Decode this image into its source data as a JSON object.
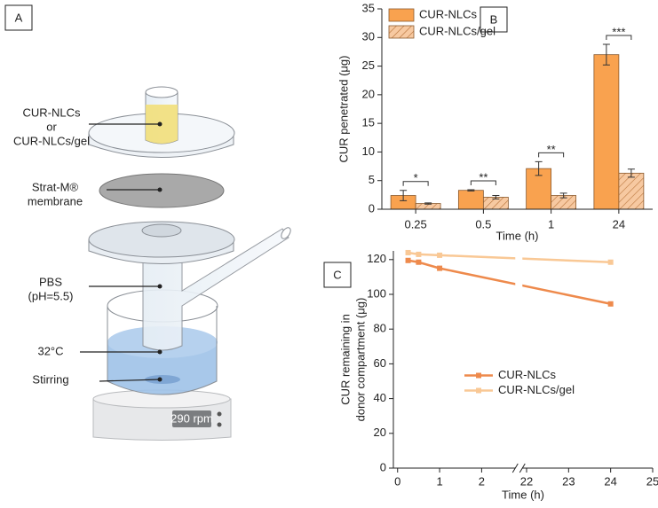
{
  "diagram": {
    "panel": "A",
    "labels": [
      "CUR-NLCs",
      "or",
      "CUR-NLCs/gel",
      "Strat-M®",
      "membrane",
      "PBS",
      "(pH=5.5)",
      "32°C",
      "Stirring"
    ],
    "display": "290 rpm"
  },
  "chart_data": [
    {
      "type": "bar",
      "panel": "B",
      "xlabel": "Time (h)",
      "ylabel": "CUR penetrated (μg)",
      "categories": [
        "0.25",
        "0.5",
        "1",
        "24"
      ],
      "series": [
        {
          "name": "CUR-NLCs",
          "color": "#f9a24f",
          "values": [
            2.4,
            3.3,
            7.1,
            27.0
          ],
          "errors": [
            0.9,
            0.1,
            1.2,
            1.8
          ]
        },
        {
          "name": "CUR-NLCs/gel",
          "color": "#f7c9a1",
          "hatch": true,
          "values": [
            1.0,
            2.1,
            2.4,
            6.3
          ],
          "errors": [
            0.1,
            0.3,
            0.4,
            0.7
          ]
        }
      ],
      "significance": [
        "*",
        "**",
        "**",
        "***"
      ],
      "ylim": [
        0,
        35
      ],
      "yticks": [
        0,
        5,
        10,
        15,
        20,
        25,
        30,
        35
      ],
      "legend": "upper left"
    },
    {
      "type": "line",
      "panel": "C",
      "xlabel": "Time (h)",
      "ylabel": [
        "CUR remaining in",
        "donor compartment (μg)"
      ],
      "x": [
        0.25,
        0.5,
        1,
        24
      ],
      "series": [
        {
          "name": "CUR-NLCs",
          "color": "#ee8a4c",
          "values": [
            119.5,
            118.5,
            115,
            94.5
          ]
        },
        {
          "name": "CUR-NLCs/gel",
          "color": "#f9c895",
          "values": [
            124,
            123,
            122.5,
            118.5
          ]
        }
      ],
      "xlim": [
        -0.1,
        25
      ],
      "xbreak": [
        2.8,
        21.9
      ],
      "xticks": [
        0,
        1,
        2,
        22,
        23,
        24,
        25
      ],
      "ylim": [
        0,
        125
      ],
      "yticks": [
        0,
        20,
        40,
        60,
        80,
        100,
        120
      ],
      "legend": "center left"
    }
  ]
}
